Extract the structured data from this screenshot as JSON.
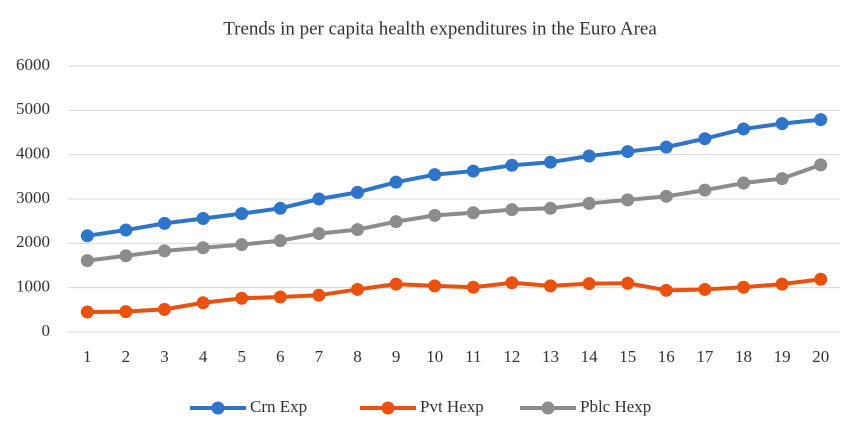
{
  "chart_data": {
    "type": "line",
    "title": "Trends in per capita health expenditures in the Euro Area",
    "categories": [
      "1",
      "2",
      "3",
      "4",
      "5",
      "6",
      "7",
      "8",
      "9",
      "10",
      "11",
      "12",
      "13",
      "14",
      "15",
      "16",
      "17",
      "18",
      "19",
      "20"
    ],
    "series": [
      {
        "name": "Crn Exp",
        "color": "#2e75c9",
        "values": [
          2170,
          2300,
          2450,
          2560,
          2670,
          2790,
          3000,
          3150,
          3380,
          3550,
          3630,
          3760,
          3830,
          3970,
          4070,
          4170,
          4360,
          4580,
          4700,
          4790
        ]
      },
      {
        "name": "Pvt Hexp",
        "color": "#e8520e",
        "values": [
          450,
          460,
          510,
          660,
          760,
          790,
          830,
          960,
          1080,
          1040,
          1010,
          1110,
          1040,
          1090,
          1100,
          940,
          960,
          1010,
          1080,
          1190
        ]
      },
      {
        "name": "Pblc Hexp",
        "color": "#8c8c8c",
        "values": [
          1610,
          1720,
          1830,
          1900,
          1970,
          2060,
          2220,
          2310,
          2490,
          2630,
          2690,
          2760,
          2790,
          2900,
          2980,
          3060,
          3200,
          3360,
          3460,
          3770
        ]
      }
    ],
    "ylim": [
      0,
      6000
    ],
    "yticks": [
      0,
      1000,
      2000,
      3000,
      4000,
      5000,
      6000
    ],
    "grid": true,
    "legend": "bottom"
  }
}
